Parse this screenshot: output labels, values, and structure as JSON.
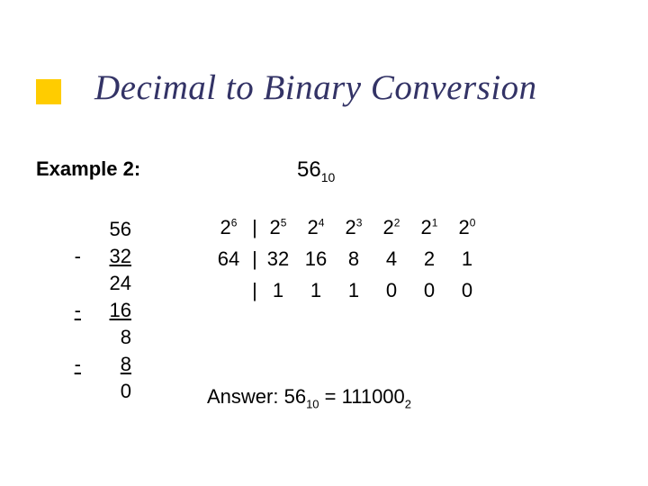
{
  "accent_color": "#ffcc00",
  "title_color": "#333366",
  "title": "Decimal to Binary Conversion",
  "example_label": "Example 2:",
  "target": {
    "value": "56",
    "base": "10"
  },
  "work": [
    {
      "minus": "",
      "num": "56",
      "underline": false
    },
    {
      "minus": "-",
      "num": "32",
      "underline": true
    },
    {
      "minus": "",
      "num": "24",
      "underline": false
    },
    {
      "minus": "-",
      "num": "16",
      "underline": true
    },
    {
      "minus": "",
      "num": "8",
      "underline": false
    },
    {
      "minus": "-",
      "num": "8",
      "underline": true
    },
    {
      "minus": "",
      "num": "0",
      "underline": false
    }
  ],
  "powers_header": [
    "2⁶",
    "2⁵",
    "2⁴",
    "2³",
    "2²",
    "2¹",
    "2⁰"
  ],
  "powers_plain": [
    {
      "base": "2",
      "exp": "6"
    },
    {
      "base": "2",
      "exp": "5"
    },
    {
      "base": "2",
      "exp": "4"
    },
    {
      "base": "2",
      "exp": "3"
    },
    {
      "base": "2",
      "exp": "2"
    },
    {
      "base": "2",
      "exp": "1"
    },
    {
      "base": "2",
      "exp": "0"
    }
  ],
  "powers_values": [
    "64",
    "32",
    "16",
    "8",
    "4",
    "2",
    "1"
  ],
  "binary_bits": [
    "",
    "1",
    "1",
    "1",
    "0",
    "0",
    "0"
  ],
  "answer_prefix": "Answer:  ",
  "answer_dec": {
    "value": "56",
    "base": "10"
  },
  "answer_eq": " = ",
  "answer_bin": {
    "value": "111000",
    "base": "2"
  }
}
